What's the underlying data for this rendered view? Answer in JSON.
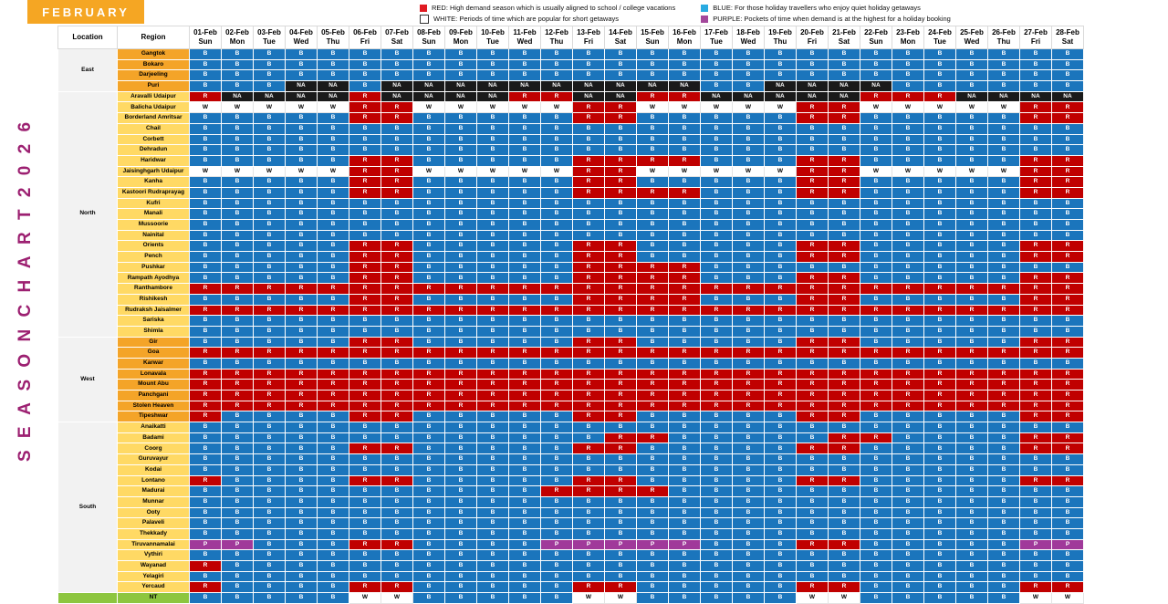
{
  "banner": {
    "month": "FEBRUARY",
    "bg": "#F5A623"
  },
  "legend": [
    {
      "name": "red-legend",
      "swatch": "#E01B22",
      "border": "none",
      "text": "RED: High demand season which is usually aligned to school / college vacations"
    },
    {
      "name": "white-legend",
      "swatch": "#FFFFFF",
      "border": "#333333",
      "text": "WHITE: Periods of time which are popular for short getaways"
    },
    {
      "name": "blue-legend",
      "swatch": "#29ABE2",
      "border": "none",
      "text": "BLUE: For those holiday travellers who enjoy quiet holiday getaways"
    },
    {
      "name": "purple-legend",
      "swatch": "#A3479B",
      "border": "none",
      "text": "PURPLE: Pockets of time when demand is at the highest for a holiday booking"
    }
  ],
  "vertical_title": {
    "text": "S E A S O N   C H A R T   2 0 2 6",
    "color": "#9C2071"
  },
  "chart_data": {
    "type": "heatmap",
    "title": "SEASON CHART 2026 - FEBRUARY",
    "columns": {
      "location": "Location",
      "region": "Region"
    },
    "dates": [
      {
        "date": "01-Feb",
        "day": "Sun"
      },
      {
        "date": "02-Feb",
        "day": "Mon"
      },
      {
        "date": "03-Feb",
        "day": "Tue"
      },
      {
        "date": "04-Feb",
        "day": "Wed"
      },
      {
        "date": "05-Feb",
        "day": "Thu"
      },
      {
        "date": "06-Feb",
        "day": "Fri"
      },
      {
        "date": "07-Feb",
        "day": "Sat"
      },
      {
        "date": "08-Feb",
        "day": "Sun"
      },
      {
        "date": "09-Feb",
        "day": "Mon"
      },
      {
        "date": "10-Feb",
        "day": "Tue"
      },
      {
        "date": "11-Feb",
        "day": "Wed"
      },
      {
        "date": "12-Feb",
        "day": "Thu"
      },
      {
        "date": "13-Feb",
        "day": "Fri"
      },
      {
        "date": "14-Feb",
        "day": "Sat"
      },
      {
        "date": "15-Feb",
        "day": "Sun"
      },
      {
        "date": "16-Feb",
        "day": "Mon"
      },
      {
        "date": "17-Feb",
        "day": "Tue"
      },
      {
        "date": "18-Feb",
        "day": "Wed"
      },
      {
        "date": "19-Feb",
        "day": "Thu"
      },
      {
        "date": "20-Feb",
        "day": "Fri"
      },
      {
        "date": "21-Feb",
        "day": "Sat"
      },
      {
        "date": "22-Feb",
        "day": "Sun"
      },
      {
        "date": "23-Feb",
        "day": "Mon"
      },
      {
        "date": "24-Feb",
        "day": "Tue"
      },
      {
        "date": "25-Feb",
        "day": "Wed"
      },
      {
        "date": "26-Feb",
        "day": "Thu"
      },
      {
        "date": "27-Feb",
        "day": "Fri"
      },
      {
        "date": "28-Feb",
        "day": "Sat"
      }
    ],
    "cell_styles": {
      "B": {
        "bg": "#1B75BC",
        "fg": "#FFFFFF"
      },
      "R": {
        "bg": "#C00000",
        "fg": "#FFFFFF"
      },
      "W": {
        "bg": "#FFFFFF",
        "fg": "#000000"
      },
      "NA": {
        "bg": "#1A1A1A",
        "fg": "#FFFFFF"
      },
      "P": {
        "bg": "#A0399A",
        "fg": "#FFFFFF"
      }
    },
    "tones": {
      "dark": "#F4A428",
      "light": "#FFD964",
      "green": "#8DC63F",
      "group": "#F2F2F2"
    },
    "groups": [
      {
        "name": "East",
        "tone": "dark",
        "rows": [
          {
            "region": "Gangtok",
            "cells": "B B B B B B B B B B B B B B B B B B B B B B B B B B B B"
          },
          {
            "region": "Bokaro",
            "cells": "B B B B B B B B B B B B B B B B B B B B B B B B B B B B"
          },
          {
            "region": "Darjeeling",
            "cells": "B B B B B B B B B B B B B B B B B B B B B B B B B B B B"
          },
          {
            "region": "Puri",
            "cells": "B B B NA NA B NA NA NA NA NA NA NA NA NA NA B B NA NA NA NA B B B B B B"
          }
        ]
      },
      {
        "name": "North",
        "tone": "light",
        "rows": [
          {
            "region": "Aravalli Udaipur",
            "cells": "R NA NA NA NA R NA NA NA NA R R NA NA R R NA NA NA NA NA R R R NA NA NA NA"
          },
          {
            "region": "Balicha Udaipur",
            "cells": "W W W W W R R W W W W W R R W W W W W R R W W W W W R R"
          },
          {
            "region": "Borderland Amritsar",
            "cells": "B B B B B R R B B B B B R R B B B B B R R B B B B B R R"
          },
          {
            "region": "Chail",
            "cells": "B B B B B B B B B B B B B B B B B B B B B B B B B B B B"
          },
          {
            "region": "Corbett",
            "cells": "B B B B B B B B B B B B B B B B B B B B B B B B B B B B"
          },
          {
            "region": "Dehradun",
            "cells": "B B B B B B B B B B B B B B B B B B B B B B B B B B B B"
          },
          {
            "region": "Haridwar",
            "cells": "B B B B B R R B B B B B R R R R B B B R R B B B B B R R"
          },
          {
            "region": "Jaisinghgarh Udaipur",
            "cells": "W W W W W R R W W W W W R R W W W W W R R W W W W W R R"
          },
          {
            "region": "Kanha",
            "cells": "B B B B B R R B B B B B R R B B B B B R R B B B B B R R"
          },
          {
            "region": "Kastoori Rudraprayag",
            "cells": "B B B B B R R B B B B B R R R R B B B R R B B B B B R R"
          },
          {
            "region": "Kufri",
            "cells": "B B B B B B B B B B B B B B B B B B B B B B B B B B B B"
          },
          {
            "region": "Manali",
            "cells": "B B B B B B B B B B B B B B B B B B B B B B B B B B B B"
          },
          {
            "region": "Mussoorie",
            "cells": "B B B B B B B B B B B B B B B B B B B B B B B B B B B B"
          },
          {
            "region": "Nainital",
            "cells": "B B B B B B B B B B B B B B B B B B B B B B B B B B B B"
          },
          {
            "region": "Orients",
            "cells": "B B B B B R R B B B B B R R B B B B B R R B B B B B R R"
          },
          {
            "region": "Pench",
            "cells": "B B B B B R R B B B B B R R B B B B B R R B B B B B R R"
          },
          {
            "region": "Pushkar",
            "cells": "B B B B B R R B B B B B R R R R B B B B B B B B B B B B"
          },
          {
            "region": "Rampath Ayodhya",
            "cells": "B B B B B R R B B B B B R R R R B B B R R B B B B B R R"
          },
          {
            "region": "Ranthambore",
            "cells": "R R R R R R R R R R R R R R R R R R R R R R R R R R R R"
          },
          {
            "region": "Rishikesh",
            "cells": "B B B B B R R B B B B B R R R R B B B R R B B B B B R R"
          },
          {
            "region": "Rudraksh Jaisalmer",
            "cells": "R R R R R R R R R R R R R R R R R R R R R R R R R R R R"
          },
          {
            "region": "Sariska",
            "cells": "B B B B B B B B B B B B B B B B B B B B B B B B B B B B"
          },
          {
            "region": "Shimla",
            "cells": "B B B B B B B B B B B B B B B B B B B B B B B B B B B B"
          }
        ]
      },
      {
        "name": "West",
        "tone": "dark",
        "rows": [
          {
            "region": "Gir",
            "cells": "B B B B B R R B B B B B R R B B B B B R R B B B B B R R"
          },
          {
            "region": "Goa",
            "cells": "R R R R R R R R R R R R R R R R R R R R R R R R R R R R"
          },
          {
            "region": "Karwar",
            "cells": "B B B B B B B B B B B B B B B B B B B B B B B B B B B B"
          },
          {
            "region": "Lonavala",
            "cells": "R R R R R R R R R R R R R R R R R R R R R R R R R R R R"
          },
          {
            "region": "Mount Abu",
            "cells": "R R R R R R R R R R R R R R R R R R R R R R R R R R R R"
          },
          {
            "region": "Panchgani",
            "cells": "R R R R R R R R R R R R R R R R R R R R R R R R R R R R"
          },
          {
            "region": "Stolen Heaven",
            "cells": "R R R R R R R R R R R R R R R R R R R R R R R R R R R R"
          },
          {
            "region": "Tipeshwar",
            "cells": "R B B B B R R B B B B B R R B B B B B R R B B B B B R R"
          }
        ]
      },
      {
        "name": "South",
        "tone": "light",
        "rows": [
          {
            "region": "Anaikatti",
            "cells": "B B B B B B B B B B B B B B B B B B B B B B B B B B B B"
          },
          {
            "region": "Badami",
            "cells": "B B B B B B B B B B B B B R R B B B B B R R B B B B R R"
          },
          {
            "region": "Coorg",
            "cells": "B B B B B R R B B B B B R R B B B B B R R B B B B B R R"
          },
          {
            "region": "Guruvayur",
            "cells": "B B B B B B B B B B B B B B B B B B B B B B B B B B B B"
          },
          {
            "region": "Kodai",
            "cells": "B B B B B B B B B B B B B B B B B B B B B B B B B B B B"
          },
          {
            "region": "Lontano",
            "cells": "R B B B B R R B B B B B R R B B B B B R R B B B B B R R"
          },
          {
            "region": "Madurai",
            "cells": "B B B B B B B B B B B R R R R B B B B B B B B B B B B B"
          },
          {
            "region": "Munnar",
            "cells": "B B B B B B B B B B B B B B B B B B B B B B B B B B B B"
          },
          {
            "region": "Ooty",
            "cells": "B B B B B B B B B B B B B B B B B B B B B B B B B B B B"
          },
          {
            "region": "Palaveli",
            "cells": "B B B B B B B B B B B B B B B B B B B B B B B B B B B B"
          },
          {
            "region": "Thekkady",
            "cells": "B B B B B B B B B B B B B B B B B B B B B B B B B B B B"
          },
          {
            "region": "Tiruvannamalai",
            "cells": "P P B B B R R B B B B P P P P P B B B R R B B B B B P P"
          },
          {
            "region": "Vythiri",
            "cells": "B B B B B B B B B B B B B B B B B B B B B B B B B B B B"
          },
          {
            "region": "Wayanad",
            "cells": "R B B B B B B B B B B B B B B B B B B B B B B B B B B B"
          },
          {
            "region": "Yelagiri",
            "cells": "B B B B B B B B B B B B B B B B B B B B B B B B B B B B"
          },
          {
            "region": "Yercaud",
            "cells": "R B B B B R R B B B B B R R B B B B B R R B B B B B R R"
          }
        ]
      },
      {
        "name": "",
        "tone": "green",
        "rows": [
          {
            "region": "NT",
            "cells": "B B B B B W W B B B B B W W B B B B B W W B B B B B W W"
          }
        ]
      }
    ]
  }
}
